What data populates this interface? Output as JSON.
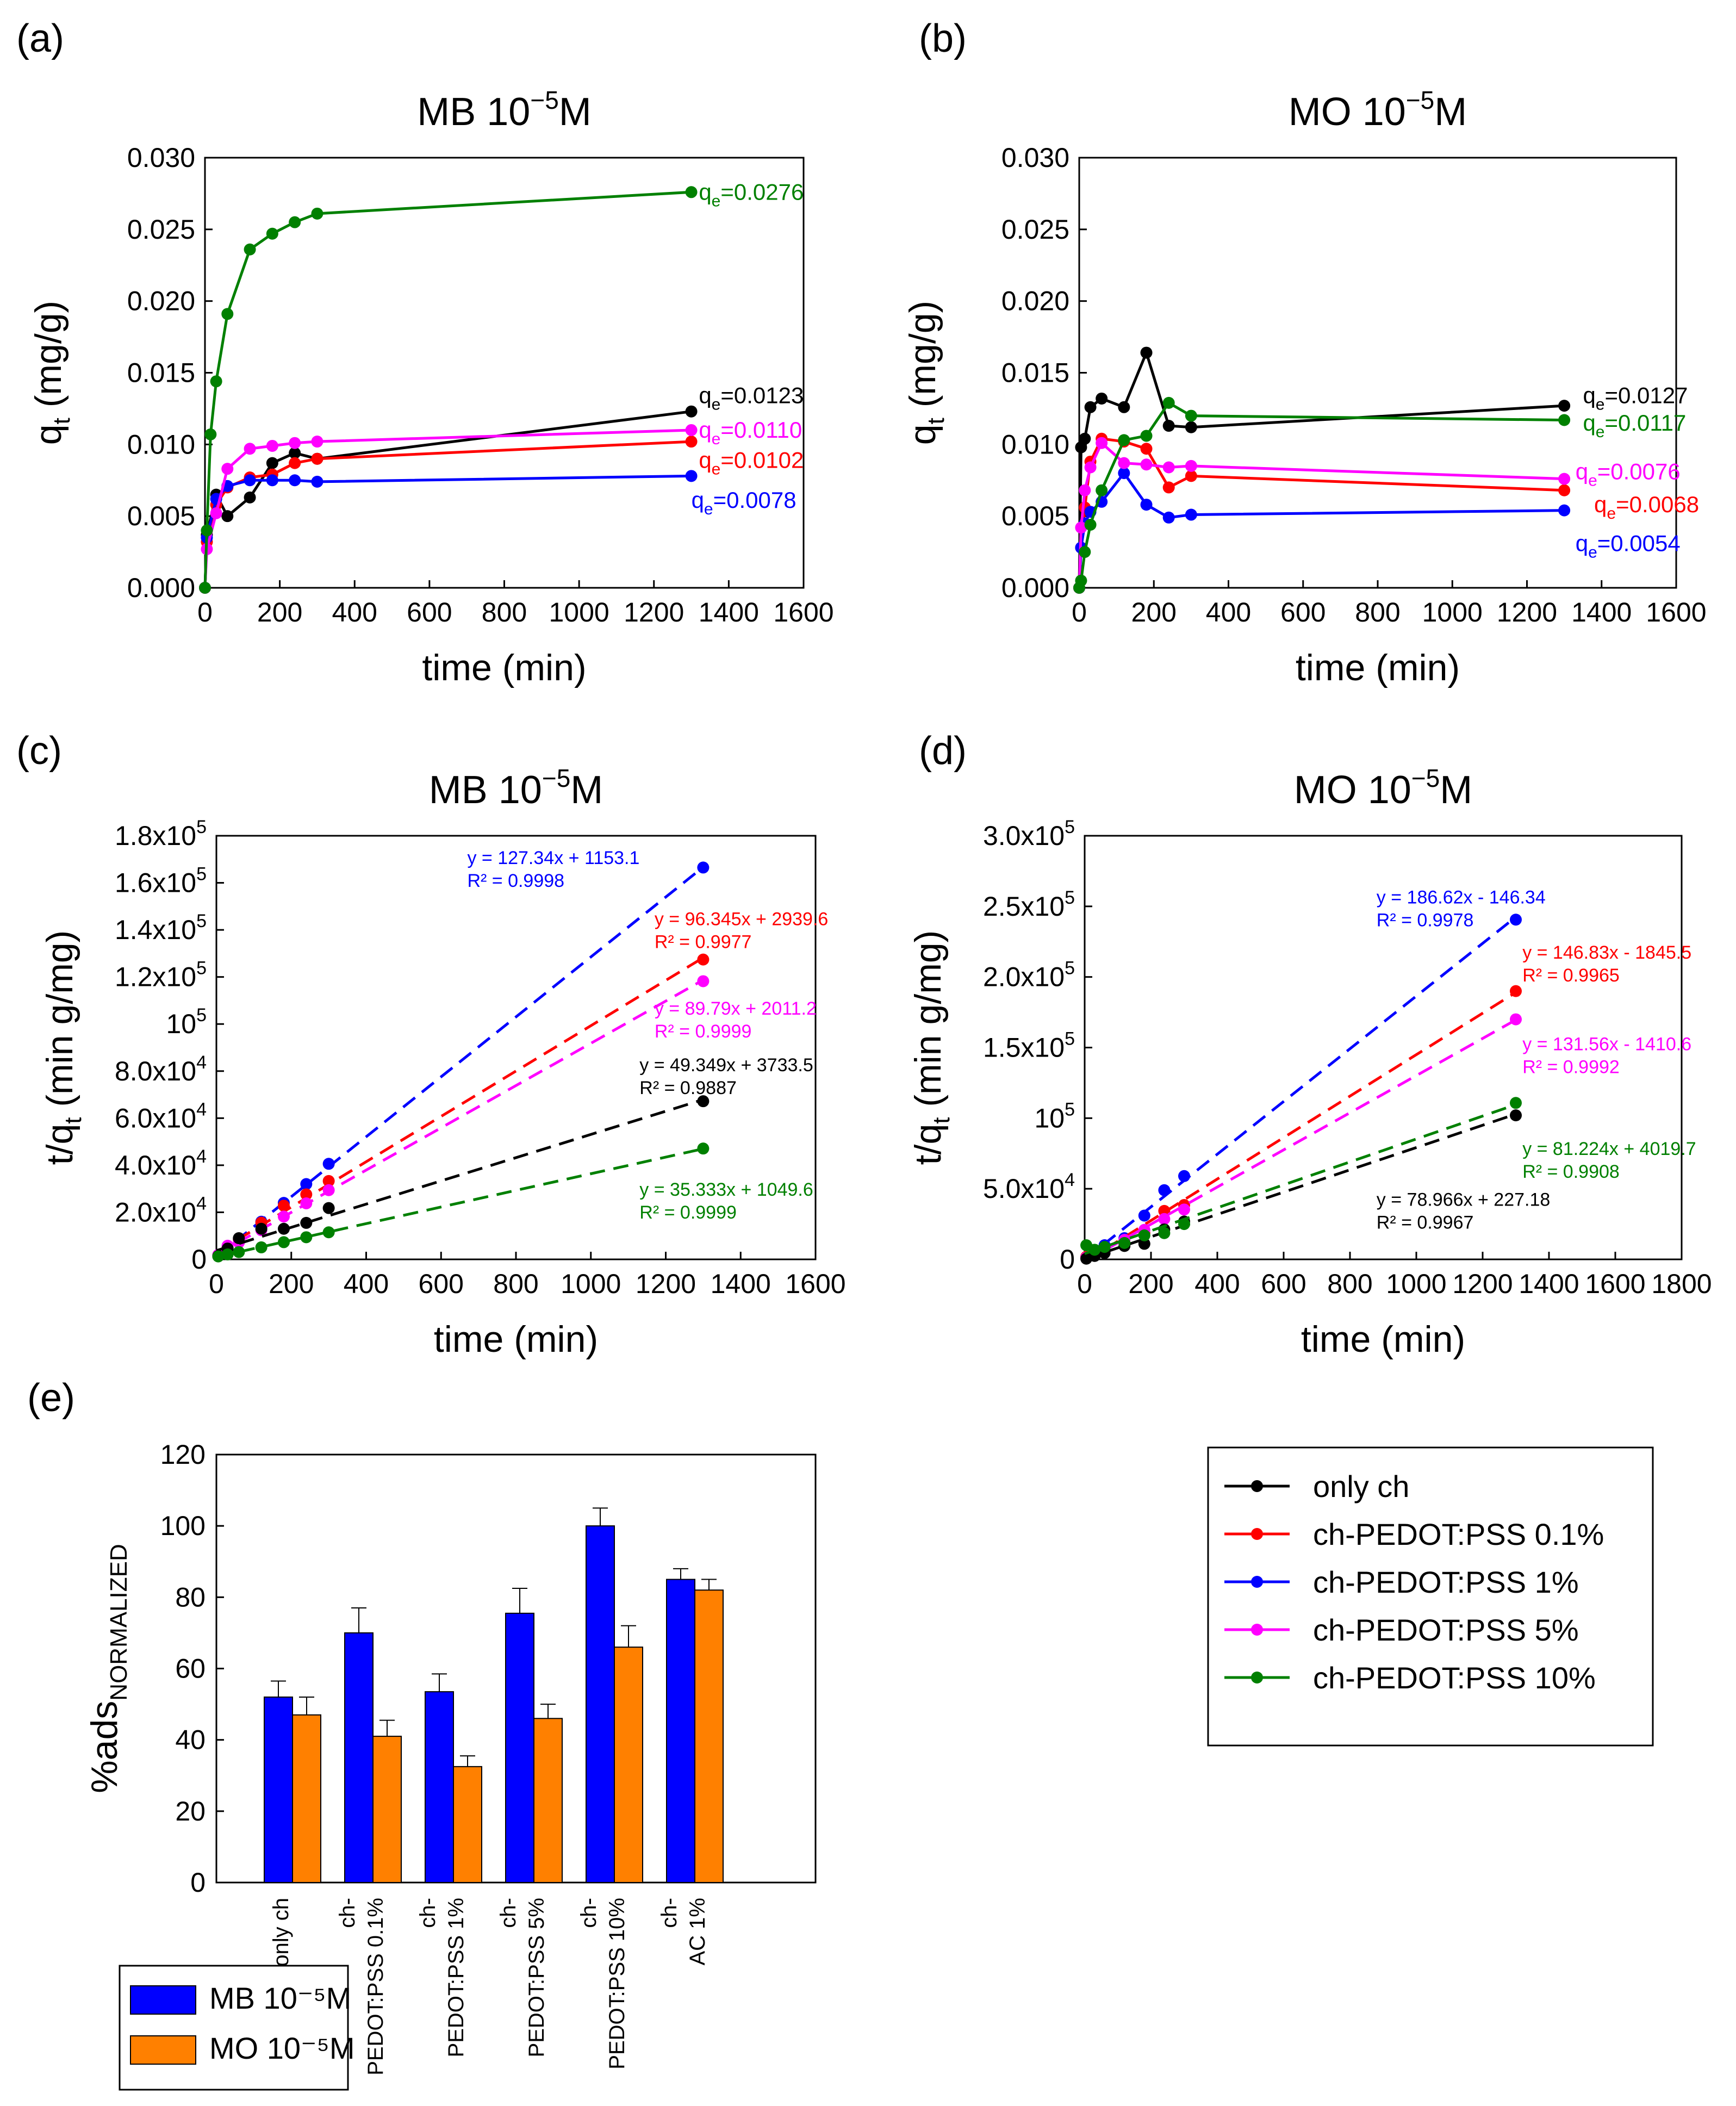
{
  "figure": {
    "panel_labels": [
      "(a)",
      "(b)",
      "(c)",
      "(d)",
      "(e)"
    ]
  },
  "legend": {
    "items": [
      {
        "label": "only ch",
        "color": "#000000"
      },
      {
        "label": "ch-PEDOT:PSS 0.1%",
        "color": "#ff0000"
      },
      {
        "label": "ch-PEDOT:PSS 1%",
        "color": "#0000ff"
      },
      {
        "label": "ch-PEDOT:PSS 5%",
        "color": "#ff00ff"
      },
      {
        "label": "ch-PEDOT:PSS 10%",
        "color": "#008000"
      }
    ]
  },
  "chart_data": [
    {
      "id": "a",
      "type": "line",
      "title": "MB 10⁻⁵M",
      "xlabel": "time (min)",
      "ylabel": "qt (mg/g)",
      "xlim": [
        0,
        1600
      ],
      "ylim": [
        0,
        0.03
      ],
      "xticks": [
        0,
        200,
        400,
        600,
        800,
        1000,
        1200,
        1400,
        1600
      ],
      "yticks": [
        "0.000",
        "0.005",
        "0.010",
        "0.015",
        "0.020",
        "0.025",
        "0.030"
      ],
      "series": [
        {
          "name": "only ch",
          "color": "#000000",
          "x": [
            0,
            5,
            30,
            60,
            120,
            180,
            240,
            300,
            1300
          ],
          "y": [
            0.0,
            0.0037,
            0.0065,
            0.005,
            0.0063,
            0.0087,
            0.0094,
            0.009,
            0.0123
          ]
        },
        {
          "name": "ch-PEDOT:PSS 0.1%",
          "color": "#ff0000",
          "x": [
            0,
            5,
            30,
            60,
            120,
            180,
            240,
            300,
            1300
          ],
          "y": [
            0.0,
            0.0032,
            0.0058,
            0.007,
            0.0077,
            0.0079,
            0.0087,
            0.009,
            0.0102
          ]
        },
        {
          "name": "ch-PEDOT:PSS 1%",
          "color": "#0000ff",
          "x": [
            0,
            5,
            30,
            60,
            120,
            180,
            240,
            300,
            1300
          ],
          "y": [
            0.0,
            0.0035,
            0.0062,
            0.0071,
            0.0075,
            0.0075,
            0.0075,
            0.0074,
            0.0078
          ]
        },
        {
          "name": "ch-PEDOT:PSS 5%",
          "color": "#ff00ff",
          "x": [
            0,
            5,
            30,
            60,
            120,
            180,
            240,
            300,
            1300
          ],
          "y": [
            0.0,
            0.0027,
            0.0052,
            0.0083,
            0.0097,
            0.0099,
            0.0101,
            0.0102,
            0.011
          ]
        },
        {
          "name": "ch-PEDOT:PSS 10%",
          "color": "#008000",
          "x": [
            0,
            5,
            15,
            30,
            60,
            120,
            180,
            240,
            300,
            1300
          ],
          "y": [
            0.0,
            0.004,
            0.0107,
            0.0144,
            0.0191,
            0.0236,
            0.0247,
            0.0255,
            0.0261,
            0.0276
          ]
        }
      ],
      "annotations": [
        {
          "text": "qe=0.0276",
          "color": "#008000",
          "x": 1320,
          "y": 0.0276
        },
        {
          "text": "qe=0.0123",
          "color": "#000000",
          "x": 1320,
          "y": 0.0134
        },
        {
          "text": "qe=0.0110",
          "color": "#ff00ff",
          "x": 1320,
          "y": 0.011
        },
        {
          "text": "qe=0.0102",
          "color": "#ff0000",
          "x": 1320,
          "y": 0.0089
        },
        {
          "text": "qe=0.0078",
          "color": "#0000ff",
          "x": 1300,
          "y": 0.0061
        }
      ]
    },
    {
      "id": "b",
      "type": "line",
      "title": "MO 10⁻⁵M",
      "xlabel": "time (min)",
      "ylabel": "qt (mg/g)",
      "xlim": [
        0,
        1600
      ],
      "ylim": [
        0,
        0.03
      ],
      "xticks": [
        0,
        200,
        400,
        600,
        800,
        1000,
        1200,
        1400,
        1600
      ],
      "yticks": [
        "0.000",
        "0.005",
        "0.010",
        "0.015",
        "0.020",
        "0.025",
        "0.030"
      ],
      "series": [
        {
          "name": "only ch",
          "color": "#000000",
          "x": [
            0,
            5,
            15,
            30,
            60,
            120,
            180,
            240,
            300,
            1300
          ],
          "y": [
            0.0,
            0.0098,
            0.0104,
            0.0126,
            0.0132,
            0.0126,
            0.0164,
            0.0113,
            0.0112,
            0.0127
          ]
        },
        {
          "name": "ch-PEDOT:PSS 0.1%",
          "color": "#ff0000",
          "x": [
            0,
            5,
            15,
            30,
            60,
            120,
            180,
            240,
            300,
            1300
          ],
          "y": [
            0.0,
            0.0028,
            0.0056,
            0.0088,
            0.0104,
            0.0102,
            0.0097,
            0.007,
            0.0078,
            0.0068
          ]
        },
        {
          "name": "ch-PEDOT:PSS 1%",
          "color": "#0000ff",
          "x": [
            0,
            5,
            15,
            30,
            60,
            120,
            180,
            240,
            300,
            1300
          ],
          "y": [
            0.0,
            0.0028,
            0.0045,
            0.0053,
            0.006,
            0.008,
            0.0058,
            0.0049,
            0.0051,
            0.0054
          ]
        },
        {
          "name": "ch-PEDOT:PSS 5%",
          "color": "#ff00ff",
          "x": [
            0,
            5,
            15,
            30,
            60,
            120,
            180,
            240,
            300,
            1300
          ],
          "y": [
            0.0,
            0.0042,
            0.0068,
            0.0084,
            0.0101,
            0.0087,
            0.0086,
            0.0084,
            0.0085,
            0.0076
          ]
        },
        {
          "name": "ch-PEDOT:PSS 10%",
          "color": "#008000",
          "x": [
            0,
            5,
            15,
            30,
            60,
            120,
            180,
            240,
            300,
            1300
          ],
          "y": [
            0.0,
            0.0005,
            0.0025,
            0.0044,
            0.0068,
            0.0103,
            0.0106,
            0.0129,
            0.012,
            0.0117
          ]
        }
      ],
      "annotations": [
        {
          "text": "qe=0.0127",
          "color": "#000000",
          "x": 1350,
          "y": 0.0134
        },
        {
          "text": "qe=0.0117",
          "color": "#008000",
          "x": 1350,
          "y": 0.0115
        },
        {
          "text": "qe=0.0076",
          "color": "#ff00ff",
          "x": 1330,
          "y": 0.0081
        },
        {
          "text": "qe=0.0068",
          "color": "#ff0000",
          "x": 1380,
          "y": 0.0058
        },
        {
          "text": "qe=0.0054",
          "color": "#0000ff",
          "x": 1330,
          "y": 0.0031
        }
      ]
    },
    {
      "id": "c",
      "type": "scatter",
      "title": "MB 10⁻⁵M",
      "xlabel": "time (min)",
      "ylabel": "t/qt (min g/mg)",
      "xlim": [
        0,
        1600
      ],
      "ylim": [
        0,
        180000
      ],
      "xticks": [
        0,
        200,
        400,
        600,
        800,
        1000,
        1200,
        1400,
        1600
      ],
      "yticks": [
        {
          "v": 0,
          "text": "0"
        },
        {
          "v": 20000,
          "text": "2.0x10⁴"
        },
        {
          "v": 40000,
          "text": "4.0x10⁴"
        },
        {
          "v": 60000,
          "text": "6.0x10⁴"
        },
        {
          "v": 80000,
          "text": "8.0x10⁴"
        },
        {
          "v": 100000,
          "text": "10⁵"
        },
        {
          "v": 120000,
          "text": "1.2x10⁵"
        },
        {
          "v": 140000,
          "text": "1.4x10⁵"
        },
        {
          "v": 160000,
          "text": "1.6x10⁵"
        },
        {
          "v": 180000,
          "text": "1.8x10⁵"
        }
      ],
      "series": [
        {
          "name": "ch-PEDOT:PSS 1%",
          "color": "#0000ff",
          "x": [
            5,
            30,
            60,
            120,
            180,
            240,
            300,
            1300
          ],
          "y": [
            1400,
            4800,
            8500,
            16000,
            24000,
            32000,
            40600,
            166500
          ],
          "fit": {
            "slope": 127.34,
            "intercept": 1153.1
          }
        },
        {
          "name": "ch-PEDOT:PSS 0.1%",
          "color": "#ff0000",
          "x": [
            5,
            30,
            60,
            120,
            180,
            240,
            300,
            1300
          ],
          "y": [
            1600,
            5200,
            8600,
            15600,
            22800,
            27600,
            33300,
            127400
          ],
          "fit": {
            "slope": 96.345,
            "intercept": 2939.6
          }
        },
        {
          "name": "ch-PEDOT:PSS 5%",
          "color": "#ff00ff",
          "x": [
            5,
            30,
            60,
            120,
            180,
            240,
            300,
            1300
          ],
          "y": [
            1900,
            5800,
            7200,
            12400,
            18200,
            23800,
            29400,
            118200
          ],
          "fit": {
            "slope": 89.79,
            "intercept": 2011.2
          }
        },
        {
          "name": "only ch",
          "color": "#000000",
          "x": [
            5,
            30,
            60,
            120,
            180,
            240,
            300,
            1300
          ],
          "y": [
            1400,
            4600,
            9000,
            13000,
            13000,
            15500,
            21800,
            67200
          ],
          "fit": {
            "slope": 49.349,
            "intercept": 3733.5
          }
        },
        {
          "name": "ch-PEDOT:PSS 10%",
          "color": "#008000",
          "x": [
            5,
            30,
            60,
            120,
            180,
            240,
            300,
            1300
          ],
          "y": [
            1250,
            2100,
            3100,
            5100,
            7300,
            9400,
            11500,
            47100
          ],
          "fit": {
            "slope": 35.333,
            "intercept": 1049.6
          }
        }
      ],
      "equations": [
        {
          "color": "#0000ff",
          "eq": "y = 127.34x + 1153.1",
          "r2": "R² = 0.9998",
          "x": 670,
          "y": 168000
        },
        {
          "color": "#ff0000",
          "eq": "y = 96.345x + 2939.6",
          "r2": "R² = 0.9977",
          "x": 1170,
          "y": 142000
        },
        {
          "color": "#ff00ff",
          "eq": "y = 89.79x + 2011.2",
          "r2": "R² = 0.9999",
          "x": 1170,
          "y": 104000
        },
        {
          "color": "#000000",
          "eq": "y = 49.349x + 3733.5",
          "r2": "R² = 0.9887",
          "x": 1130,
          "y": 80000
        },
        {
          "color": "#008000",
          "eq": "y = 35.333x + 1049.6",
          "r2": "R² = 0.9999",
          "x": 1130,
          "y": 27000
        }
      ]
    },
    {
      "id": "d",
      "type": "scatter",
      "title": "MO 10⁻⁵M",
      "xlabel": "time (min)",
      "ylabel": "t/qt (min g/mg)",
      "xlim": [
        0,
        1800
      ],
      "ylim": [
        0,
        300000
      ],
      "xticks": [
        0,
        200,
        400,
        600,
        800,
        1000,
        1200,
        1400,
        1600,
        1800
      ],
      "yticks": [
        {
          "v": 0,
          "text": "0"
        },
        {
          "v": 50000,
          "text": "5.0x10⁴"
        },
        {
          "v": 100000,
          "text": "10⁵"
        },
        {
          "v": 150000,
          "text": "1.5x10⁵"
        },
        {
          "v": 200000,
          "text": "2.0x10⁵"
        },
        {
          "v": 250000,
          "text": "2.5x10⁵"
        },
        {
          "v": 300000,
          "text": "3.0x10⁵"
        }
      ],
      "series": [
        {
          "name": "ch-PEDOT:PSS 1%",
          "color": "#0000ff",
          "x": [
            5,
            30,
            60,
            120,
            180,
            240,
            300,
            1300
          ],
          "y": [
            1500,
            5700,
            10000,
            15000,
            31000,
            49000,
            59000,
            240600
          ],
          "fit": {
            "slope": 186.62,
            "intercept": -146.34
          }
        },
        {
          "name": "ch-PEDOT:PSS 0.1%",
          "color": "#ff0000",
          "x": [
            5,
            30,
            60,
            120,
            180,
            240,
            300,
            1300
          ],
          "y": [
            1800,
            5400,
            5800,
            11700,
            18500,
            34300,
            38500,
            190000
          ],
          "fit": {
            "slope": 146.83,
            "intercept": -1845.5
          }
        },
        {
          "name": "ch-PEDOT:PSS 5%",
          "color": "#ff00ff",
          "x": [
            5,
            30,
            60,
            120,
            180,
            240,
            300,
            1300
          ],
          "y": [
            1200,
            4400,
            5900,
            13800,
            20900,
            28600,
            35300,
            170000
          ],
          "fit": {
            "slope": 131.56,
            "intercept": -1410.6
          }
        },
        {
          "name": "only ch",
          "color": "#000000",
          "x": [
            5,
            30,
            60,
            120,
            180,
            240,
            300,
            1300
          ],
          "y": [
            500,
            2400,
            4500,
            9500,
            11000,
            21200,
            26800,
            102000
          ],
          "fit": {
            "slope": 78.966,
            "intercept": 227.18
          }
        },
        {
          "name": "ch-PEDOT:PSS 10%",
          "color": "#008000",
          "x": [
            5,
            30,
            60,
            120,
            180,
            240,
            300,
            1300
          ],
          "y": [
            10000,
            6800,
            8800,
            11600,
            17000,
            18600,
            25000,
            110800
          ],
          "fit": {
            "slope": 81.224,
            "intercept": 4019.7
          }
        }
      ],
      "equations": [
        {
          "color": "#0000ff",
          "eq": "y = 186.62x - 146.34",
          "r2": "R² = 0.9978",
          "x": 880,
          "y": 252000
        },
        {
          "color": "#ff0000",
          "eq": "y = 146.83x - 1845.5",
          "r2": "R² = 0.9965",
          "x": 1320,
          "y": 213000
        },
        {
          "color": "#ff00ff",
          "eq": "y = 131.56x - 1410.6",
          "r2": "R² = 0.9992",
          "x": 1320,
          "y": 148000
        },
        {
          "color": "#008000",
          "eq": "y = 81.224x + 4019.7",
          "r2": "R² = 0.9908",
          "x": 1320,
          "y": 74000
        },
        {
          "color": "#000000",
          "eq": "y = 78.966x + 227.18",
          "r2": "R² = 0.9967",
          "x": 880,
          "y": 38000
        }
      ]
    },
    {
      "id": "e",
      "type": "bar",
      "ylabel": "%adsNORMALIZED",
      "ylim": [
        0,
        120
      ],
      "yticks": [
        0,
        20,
        40,
        60,
        80,
        100,
        120
      ],
      "categories": [
        [
          "only ch"
        ],
        [
          "ch-",
          "PEDOT:PSS 0.1%"
        ],
        [
          "ch-",
          "PEDOT:PSS 1%"
        ],
        [
          "ch-",
          "PEDOT:PSS 5%"
        ],
        [
          "ch-",
          "PEDOT:PSS 10%"
        ],
        [
          "ch-",
          "AC 1%"
        ]
      ],
      "series": [
        {
          "name": "MB 10⁻⁵M",
          "color": "#0000ff",
          "values": [
            52,
            70,
            53.5,
            75.5,
            100,
            85
          ],
          "errors": [
            4.5,
            7,
            5,
            7,
            5,
            3
          ]
        },
        {
          "name": "MO 10⁻⁵M",
          "color": "#ff8000",
          "values": [
            47,
            41,
            32.5,
            46,
            66,
            82
          ],
          "errors": [
            5,
            4.5,
            3,
            4,
            6,
            3
          ]
        }
      ]
    }
  ]
}
